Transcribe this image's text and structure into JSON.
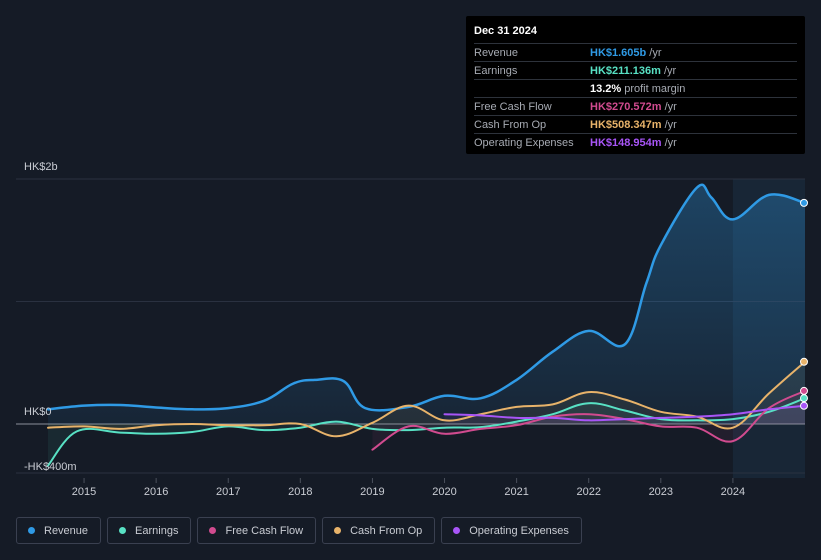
{
  "tooltip": {
    "date": "Dec 31 2024",
    "rows": [
      {
        "label": "Revenue",
        "value": "HK$1.605b",
        "unit": "/yr",
        "color": "#2f9ae5"
      },
      {
        "label": "Earnings",
        "value": "HK$211.136m",
        "unit": "/yr",
        "color": "#58e1c4"
      },
      {
        "label": "",
        "value": "13.2%",
        "unit": "profit margin",
        "color": "#ffffff"
      },
      {
        "label": "Free Cash Flow",
        "value": "HK$270.572m",
        "unit": "/yr",
        "color": "#d14b8f"
      },
      {
        "label": "Cash From Op",
        "value": "HK$508.347m",
        "unit": "/yr",
        "color": "#e8b36a"
      },
      {
        "label": "Operating Expenses",
        "value": "HK$148.954m",
        "unit": "/yr",
        "color": "#a855f7"
      }
    ]
  },
  "legend": [
    {
      "label": "Revenue",
      "color": "#2f9ae5"
    },
    {
      "label": "Earnings",
      "color": "#58e1c4"
    },
    {
      "label": "Free Cash Flow",
      "color": "#d14b8f"
    },
    {
      "label": "Cash From Op",
      "color": "#e8b36a"
    },
    {
      "label": "Operating Expenses",
      "color": "#a855f7"
    }
  ],
  "chart_data": {
    "type": "line",
    "title": "",
    "unit": "HK$ millions",
    "y_tick_labels": {
      "top": "HK$2b",
      "zero": "HK$0",
      "bottom": "-HK$400m"
    },
    "ylim": [
      -400,
      2000
    ],
    "xlim": [
      2014.5,
      2025.0
    ],
    "x_ticks": [
      "2015",
      "2016",
      "2017",
      "2018",
      "2019",
      "2020",
      "2021",
      "2022",
      "2023",
      "2024"
    ],
    "highlight_start": 2024.0,
    "series": [
      {
        "name": "Revenue",
        "color": "#2f9ae5",
        "fill": true,
        "x": [
          2014.5,
          2015.0,
          2015.5,
          2016.0,
          2016.5,
          2017.0,
          2017.5,
          2017.9,
          2018.2,
          2018.6,
          2018.9,
          2019.5,
          2020.0,
          2020.5,
          2021.0,
          2021.5,
          2022.0,
          2022.5,
          2022.8,
          2023.0,
          2023.5,
          2023.7,
          2024.0,
          2024.5,
          2025.0
        ],
        "y": [
          120,
          150,
          155,
          135,
          120,
          130,
          190,
          330,
          360,
          350,
          130,
          140,
          230,
          210,
          360,
          590,
          760,
          650,
          1150,
          1460,
          1930,
          1850,
          1670,
          1870,
          1805
        ]
      },
      {
        "name": "Earnings",
        "color": "#58e1c4",
        "fill": false,
        "x": [
          2014.5,
          2014.9,
          2015.5,
          2016.0,
          2016.5,
          2017.0,
          2017.5,
          2018.0,
          2018.5,
          2019.0,
          2019.5,
          2020.0,
          2020.5,
          2021.0,
          2021.5,
          2022.0,
          2022.5,
          2023.0,
          2023.5,
          2024.0,
          2024.5,
          2025.0
        ],
        "y": [
          -340,
          -60,
          -70,
          -80,
          -65,
          -20,
          -50,
          -30,
          20,
          -40,
          -50,
          -30,
          -25,
          20,
          80,
          170,
          110,
          40,
          30,
          40,
          100,
          211
        ]
      },
      {
        "name": "Free Cash Flow",
        "color": "#d14b8f",
        "fill": false,
        "x": [
          2019.0,
          2019.5,
          2020.0,
          2020.5,
          2021.0,
          2021.5,
          2022.0,
          2022.5,
          2023.0,
          2023.5,
          2024.0,
          2024.5,
          2025.0
        ],
        "y": [
          -210,
          -20,
          -80,
          -40,
          -10,
          60,
          80,
          40,
          -20,
          -30,
          -140,
          130,
          270
        ]
      },
      {
        "name": "Cash From Op",
        "color": "#e8b36a",
        "fill": false,
        "x": [
          2014.5,
          2015.0,
          2015.5,
          2016.0,
          2016.5,
          2017.0,
          2017.5,
          2018.0,
          2018.5,
          2019.0,
          2019.5,
          2020.0,
          2020.5,
          2021.0,
          2021.5,
          2022.0,
          2022.5,
          2023.0,
          2023.5,
          2024.0,
          2024.5,
          2025.0
        ],
        "y": [
          -30,
          -20,
          -40,
          -10,
          0,
          -10,
          -10,
          0,
          -100,
          10,
          150,
          30,
          80,
          140,
          160,
          260,
          200,
          100,
          60,
          -30,
          250,
          508
        ]
      },
      {
        "name": "Operating Expenses",
        "color": "#a855f7",
        "fill": false,
        "x": [
          2020.0,
          2020.5,
          2021.0,
          2021.5,
          2022.0,
          2022.5,
          2023.0,
          2023.5,
          2024.0,
          2024.5,
          2025.0
        ],
        "y": [
          80,
          70,
          50,
          50,
          30,
          40,
          50,
          60,
          80,
          120,
          149
        ]
      }
    ]
  }
}
